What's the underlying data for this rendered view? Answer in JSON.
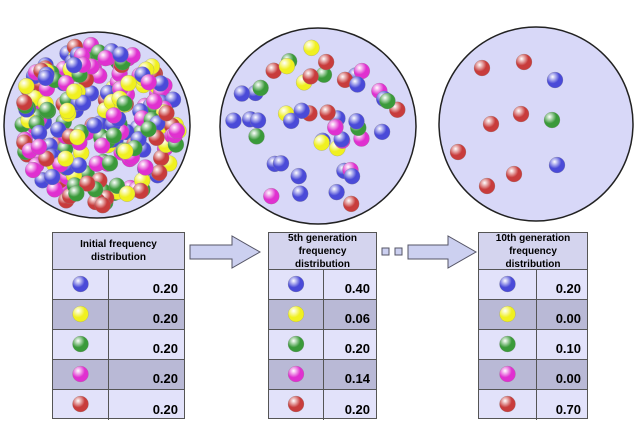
{
  "panels": [
    {
      "header": "Initial frequency distribution",
      "rows": [
        "0.20",
        "0.20",
        "0.20",
        "0.20",
        "0.20"
      ]
    },
    {
      "header": "5th generation frequency distribution",
      "rows": [
        "0.40",
        "0.06",
        "0.20",
        "0.14",
        "0.20"
      ]
    },
    {
      "header": "10th generation frequency distribution",
      "rows": [
        "0.20",
        "0.00",
        "0.10",
        "0.00",
        "0.70"
      ]
    }
  ]
}
